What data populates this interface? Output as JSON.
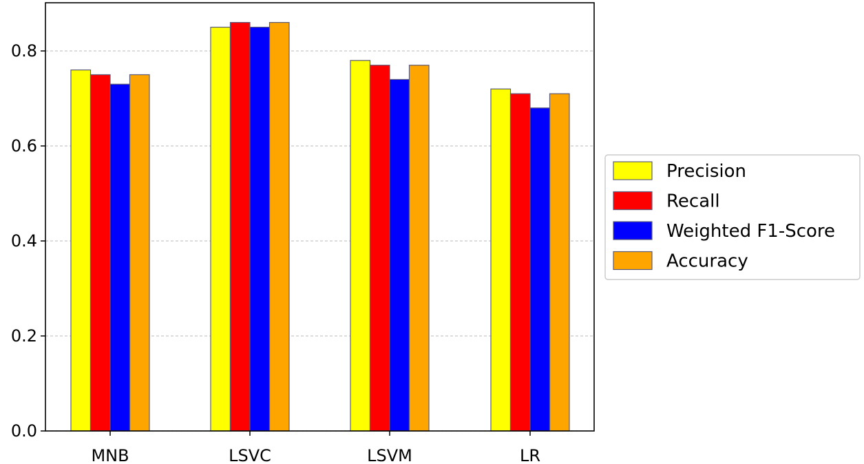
{
  "chart_data": {
    "type": "bar",
    "title": "",
    "xlabel": "",
    "ylabel": "",
    "categories": [
      "MNB",
      "LSVC",
      "LSVM",
      "LR"
    ],
    "series": [
      {
        "name": "Precision",
        "values": [
          0.76,
          0.85,
          0.78,
          0.72
        ],
        "color": "#ffff00"
      },
      {
        "name": "Recall",
        "values": [
          0.75,
          0.86,
          0.77,
          0.71
        ],
        "color": "#ff0000"
      },
      {
        "name": "Weighted F1-Score",
        "values": [
          0.73,
          0.85,
          0.74,
          0.68
        ],
        "color": "#0000ff"
      },
      {
        "name": "Accuracy",
        "values": [
          0.75,
          0.86,
          0.77,
          0.71
        ],
        "color": "#ffa500"
      }
    ],
    "ylim": [
      0,
      0.87
    ],
    "yticks": [
      0.0,
      0.2,
      0.4,
      0.6,
      0.8
    ],
    "ytick_labels": [
      "0.0",
      "0.2",
      "0.4",
      "0.6",
      "0.8"
    ],
    "grid": "y-dashed",
    "legend_position": "right-outside",
    "bar_edge_color": "#5a5a7a"
  }
}
